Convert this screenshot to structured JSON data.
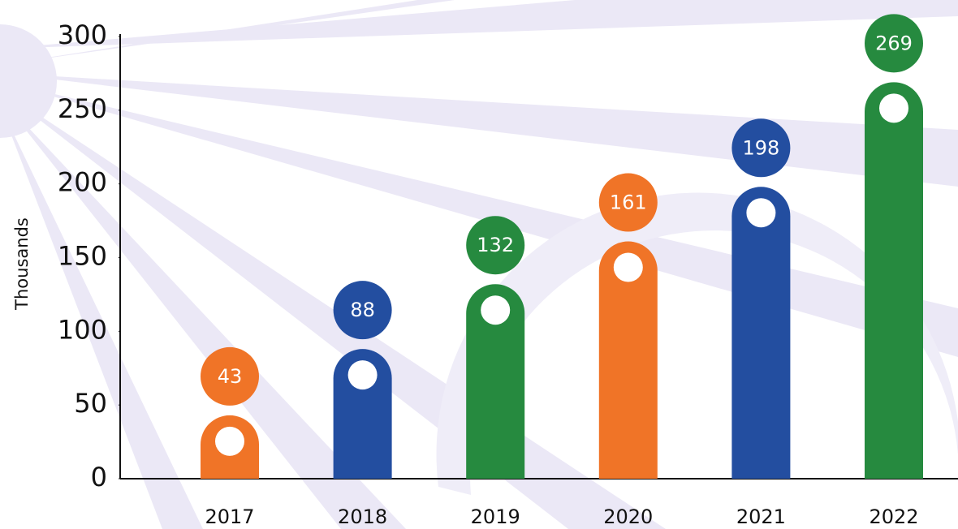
{
  "chart_data": {
    "type": "bar",
    "categories": [
      "2017",
      "2018",
      "2019",
      "2020",
      "2021",
      "2022"
    ],
    "values": [
      43,
      88,
      132,
      161,
      198,
      269
    ],
    "colors": [
      "#f07427",
      "#234ea0",
      "#268a3f",
      "#f07427",
      "#234ea0",
      "#268a3f"
    ],
    "y_label": "Thousands",
    "ylim": [
      0,
      300
    ],
    "yticks": [
      0,
      50,
      100,
      150,
      200,
      250,
      300
    ]
  }
}
